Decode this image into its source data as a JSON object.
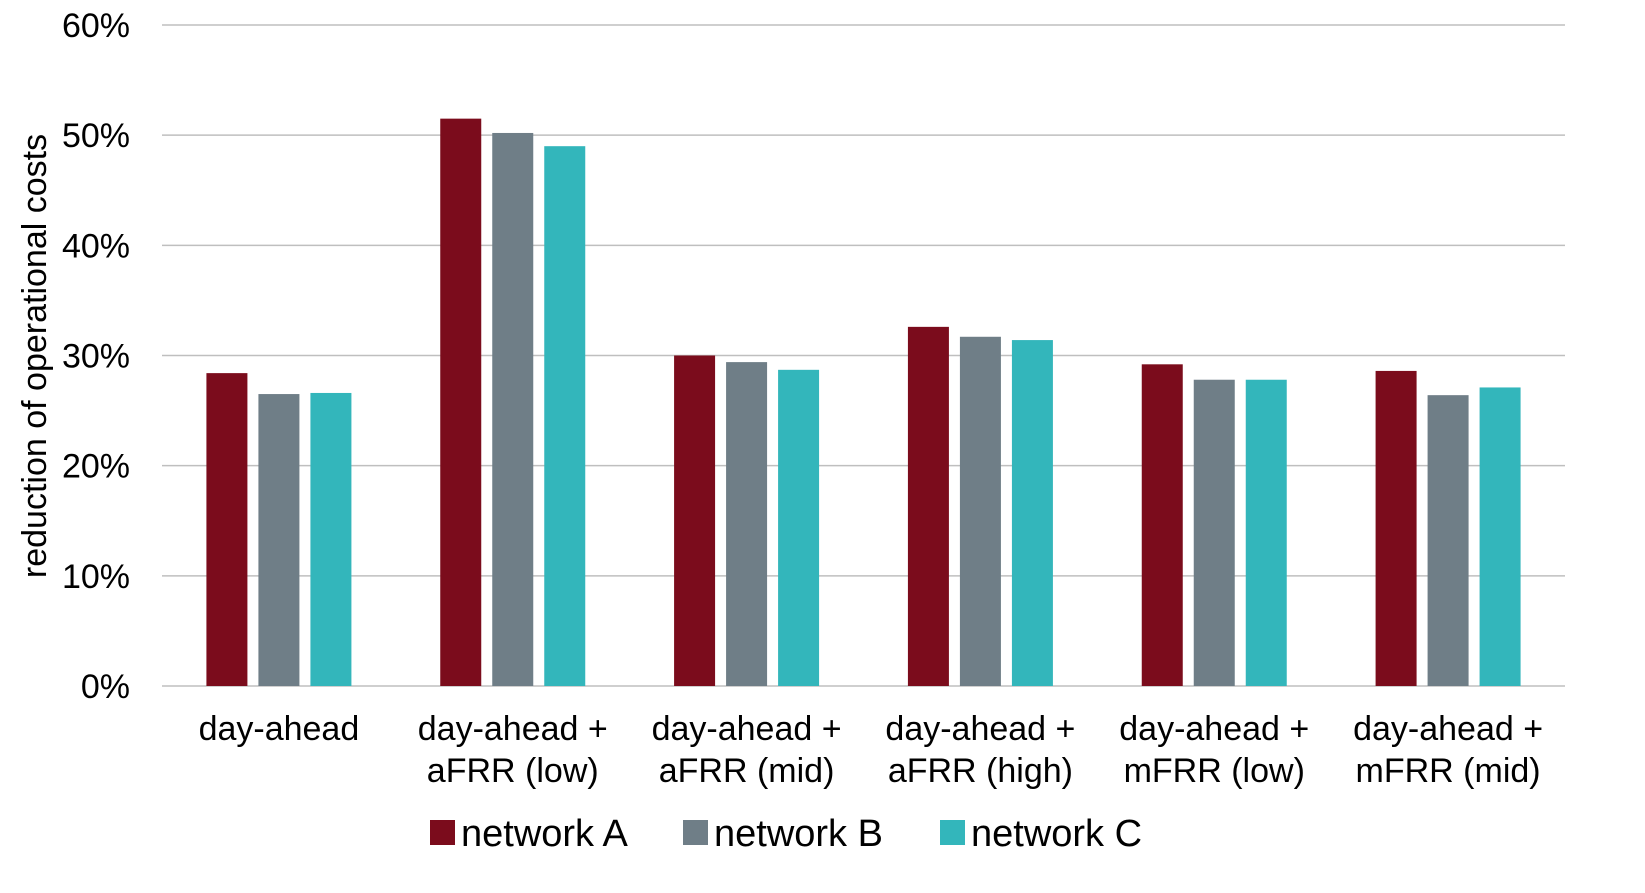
{
  "chart_data": {
    "type": "bar",
    "ylabel": "reduction of operational costs",
    "xlabel": "",
    "ylim": [
      0,
      60
    ],
    "y_ticks": [
      0,
      10,
      20,
      30,
      40,
      50,
      60
    ],
    "y_tick_labels": [
      "0%",
      "10%",
      "20%",
      "30%",
      "40%",
      "50%",
      "60%"
    ],
    "categories": [
      [
        "day-ahead"
      ],
      [
        "day-ahead +",
        "aFRR (low)"
      ],
      [
        "day-ahead +",
        "aFRR (mid)"
      ],
      [
        "day-ahead +",
        "aFRR (high)"
      ],
      [
        "day-ahead +",
        "mFRR (low)"
      ],
      [
        "day-ahead +",
        "mFRR (mid)"
      ]
    ],
    "series": [
      {
        "name": "network A",
        "color": "#7b0c1c",
        "values": [
          28.4,
          51.5,
          30.0,
          32.6,
          29.2,
          28.6
        ]
      },
      {
        "name": "network B",
        "color": "#6f7e87",
        "values": [
          26.5,
          50.2,
          29.4,
          31.7,
          27.8,
          26.4
        ]
      },
      {
        "name": "network C",
        "color": "#33b6bb",
        "values": [
          26.6,
          49.0,
          28.7,
          31.4,
          27.8,
          27.1
        ]
      }
    ],
    "grid": true,
    "legend_position": "bottom"
  }
}
